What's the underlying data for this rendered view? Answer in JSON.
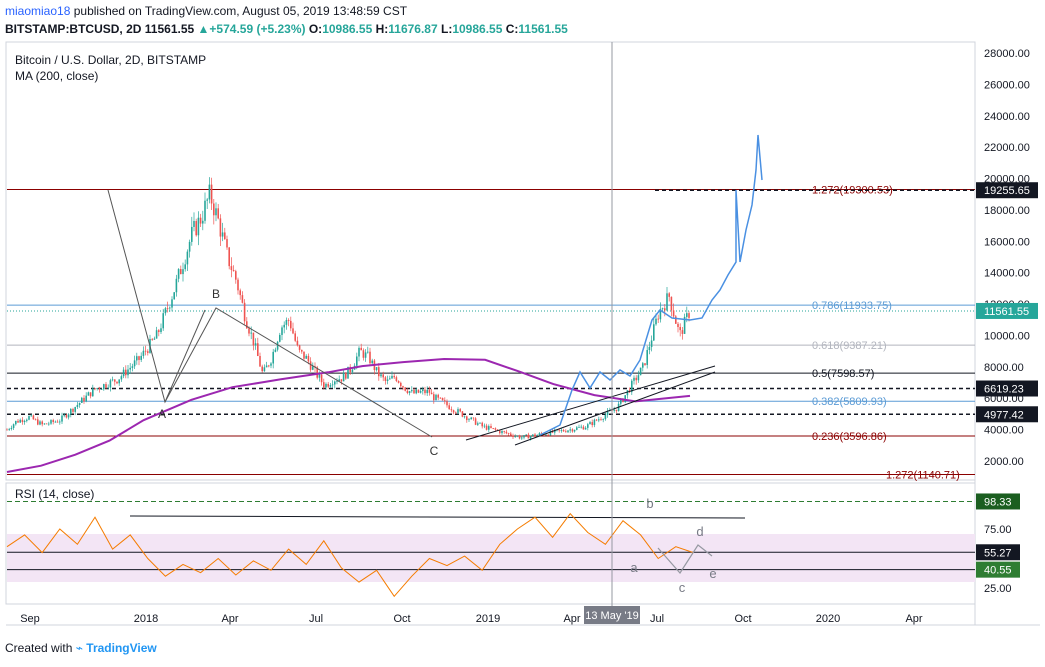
{
  "header": {
    "user": "miaomiao18",
    "published": "published on TradingView.com, August 05, 2019 13:48:59 CST",
    "symbol": "BITSTAMP:BTCUSD, 2D",
    "last": "11561.55",
    "change": "+574.59 (+5.23%)",
    "o_label": "O:",
    "o_value": "10986.55",
    "h_label": "H:",
    "h_value": "11676.87",
    "l_label": "L:",
    "l_value": "10986.55",
    "c_label": "C:",
    "c_value": "11561.55"
  },
  "legend": {
    "title": "Bitcoin / U.S. Dollar, 2D, BITSTAMP",
    "ma": "MA (200, close)",
    "rsi": "RSI (14, close)"
  },
  "footer": {
    "created_with": "Created with",
    "brand": "TradingView"
  },
  "colors": {
    "up": "#26a69a",
    "down": "#ef5350",
    "ma": "#9c27b0",
    "projection": "#4a90e2",
    "rsi": "#f57c00",
    "fib": "#8b0000",
    "fib_blue": "#5b9bd5",
    "rsi_band": "#f0e0f5"
  },
  "chart_data": [
    {
      "type": "line",
      "title": "Bitcoin / U.S. Dollar, 2D, BITSTAMP",
      "xlabel": "",
      "ylabel": "",
      "x_ticks": [
        "Sep",
        "2018",
        "Apr",
        "Jul",
        "Oct",
        "2019",
        "Apr",
        "13 May '19",
        "Jul",
        "Oct",
        "2020",
        "Apr"
      ],
      "y_ticks": [
        2000,
        4000,
        6000,
        8000,
        10000,
        12000,
        14000,
        16000,
        18000,
        20000,
        22000,
        24000,
        26000,
        28000
      ],
      "ylim": [
        1000,
        28500
      ],
      "grid": false,
      "price_labels": [
        "28000.00",
        "26000.00",
        "24000.00",
        "22000.00",
        "20000.00",
        "18000.00",
        "16000.00",
        "14000.00",
        "12000.00",
        "10000.00",
        "8000.00",
        "6000.00",
        "4000.00",
        "2000.00"
      ],
      "value_badges": [
        {
          "text": "19255.65",
          "value": 19255.65
        },
        {
          "text": "11561.55",
          "value": 11561.55
        },
        {
          "text": "6619.23",
          "value": 6619.23
        },
        {
          "text": "4977.42",
          "value": 4977.42
        }
      ],
      "fib_levels": [
        {
          "text": "1.272(19300.53)",
          "value": 19300.53
        },
        {
          "text": "0.786(11933.75)",
          "value": 11933.75
        },
        {
          "text": "0.618(9387.21)",
          "value": 9387.21
        },
        {
          "text": "0.5(7598.57)",
          "value": 7598.57
        },
        {
          "text": "0.382(5809.93)",
          "value": 5809.93
        },
        {
          "text": "0.236(3596.86)",
          "value": 3596.86
        },
        {
          "text": "1.272(1140.71)",
          "value": 1140.71
        }
      ],
      "wave_labels": [
        "A",
        "B",
        "C"
      ],
      "series": [
        {
          "name": "MA (200, close)",
          "points": [
            [
              0,
              1300
            ],
            [
              0.05,
              1700
            ],
            [
              0.1,
              2400
            ],
            [
              0.15,
              3300
            ],
            [
              0.2,
              4600
            ],
            [
              0.27,
              5900
            ],
            [
              0.33,
              6700
            ],
            [
              0.4,
              7200
            ],
            [
              0.47,
              7650
            ],
            [
              0.52,
              8050
            ],
            [
              0.58,
              8300
            ],
            [
              0.64,
              8500
            ],
            [
              0.7,
              8450
            ],
            [
              0.75,
              7700
            ],
            [
              0.8,
              6900
            ],
            [
              0.86,
              6200
            ],
            [
              0.92,
              5800
            ],
            [
              1.0,
              6150
            ]
          ]
        },
        {
          "name": "",
          "points": [
            [
              0,
              4000
            ],
            [
              0.02,
              4500
            ],
            [
              0.05,
              4800
            ],
            [
              0.08,
              4300
            ],
            [
              0.12,
              4600
            ],
            [
              0.16,
              5600
            ],
            [
              0.2,
              6600
            ],
            [
              0.25,
              7200
            ],
            [
              0.3,
              8500
            ],
            [
              0.34,
              10000
            ],
            [
              0.38,
              13000
            ],
            [
              0.42,
              16500
            ],
            [
              0.44,
              17500
            ],
            [
              0.46,
              19000
            ],
            [
              0.48,
              17200
            ],
            [
              0.5,
              15000
            ],
            [
              0.52,
              13500
            ],
            [
              0.54,
              11200
            ],
            [
              0.56,
              9500
            ],
            [
              0.58,
              7500
            ],
            [
              0.6,
              8600
            ],
            [
              0.62,
              10500
            ],
            [
              0.64,
              11000
            ],
            [
              0.66,
              9000
            ],
            [
              0.68,
              8500
            ],
            [
              0.7,
              7600
            ],
            [
              0.72,
              6800
            ],
            [
              0.74,
              7200
            ],
            [
              0.76,
              7300
            ],
            [
              0.78,
              7900
            ],
            [
              0.8,
              9000
            ],
            [
              0.82,
              8600
            ],
            [
              0.84,
              7600
            ],
            [
              0.86,
              7000
            ],
            [
              0.88,
              7400
            ],
            [
              0.9,
              6700
            ],
            [
              0.92,
              6300
            ],
            [
              0.94,
              6400
            ],
            [
              0.96,
              6400
            ],
            [
              0.98,
              6200
            ],
            [
              1.0,
              6100
            ]
          ]
        }
      ]
    },
    {
      "type": "line",
      "title": "RSI (14, close)",
      "y_ticks": [
        25,
        75
      ],
      "ylim": [
        10,
        105
      ],
      "price_labels": [
        "75.00",
        "25.00"
      ],
      "value_badges": [
        {
          "text": "98.33",
          "value": 98.33
        },
        {
          "text": "55.27",
          "value": 55.27
        },
        {
          "text": "40.55",
          "value": 40.55
        }
      ],
      "wave_labels": [
        "a",
        "b",
        "c",
        "d",
        "e"
      ],
      "series": [
        {
          "name": "RSI (14, close)",
          "points": [
            [
              0,
              60
            ],
            [
              0.02,
              70
            ],
            [
              0.04,
              55
            ],
            [
              0.06,
              75
            ],
            [
              0.08,
              62
            ],
            [
              0.1,
              85
            ],
            [
              0.12,
              58
            ],
            [
              0.14,
              70
            ],
            [
              0.16,
              50
            ],
            [
              0.18,
              35
            ],
            [
              0.2,
              45
            ],
            [
              0.22,
              38
            ],
            [
              0.24,
              50
            ],
            [
              0.26,
              36
            ],
            [
              0.28,
              48
            ],
            [
              0.3,
              40
            ],
            [
              0.32,
              58
            ],
            [
              0.34,
              45
            ],
            [
              0.36,
              65
            ],
            [
              0.38,
              42
            ],
            [
              0.4,
              30
            ],
            [
              0.42,
              40
            ],
            [
              0.44,
              18
            ],
            [
              0.46,
              35
            ],
            [
              0.48,
              50
            ],
            [
              0.5,
              44
            ],
            [
              0.52,
              52
            ],
            [
              0.54,
              40
            ],
            [
              0.56,
              62
            ],
            [
              0.58,
              75
            ],
            [
              0.6,
              85
            ],
            [
              0.62,
              68
            ],
            [
              0.64,
              88
            ],
            [
              0.66,
              72
            ],
            [
              0.68,
              62
            ],
            [
              0.7,
              82
            ],
            [
              0.72,
              70
            ],
            [
              0.74,
              50
            ],
            [
              0.76,
              60
            ],
            [
              0.78,
              55
            ]
          ]
        }
      ]
    }
  ]
}
